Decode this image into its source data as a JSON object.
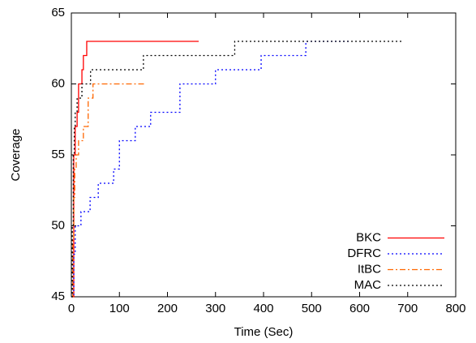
{
  "chart_data": {
    "type": "line",
    "step": true,
    "xlabel": "Time (Sec)",
    "ylabel": "Coverage",
    "xlim": [
      0,
      800
    ],
    "ylim": [
      45,
      65
    ],
    "xticks": [
      0,
      100,
      200,
      300,
      400,
      500,
      600,
      700,
      800
    ],
    "yticks": [
      45,
      50,
      55,
      60,
      65
    ],
    "grid": false,
    "legend": "lower right",
    "series": [
      {
        "name": "BKC",
        "color": "#ff0000",
        "dash": "solid",
        "x": [
          2,
          5,
          8,
          12,
          15,
          22,
          25,
          32,
          265
        ],
        "values": [
          45,
          55,
          57,
          58,
          60,
          61,
          62,
          63,
          63
        ]
      },
      {
        "name": "DFRC",
        "color": "#0000ff",
        "dash": "dotted",
        "x": [
          0,
          5,
          8,
          20,
          39,
          56,
          88,
          100,
          133,
          165,
          226,
          300,
          395,
          488,
          577
        ],
        "values": [
          45,
          48,
          50,
          51,
          52,
          53,
          54,
          56,
          57,
          58,
          60,
          61,
          62,
          63,
          63
        ]
      },
      {
        "name": "ItBC",
        "color": "#ff6600",
        "dash": "dashdot",
        "x": [
          0,
          3,
          5,
          7,
          10,
          15,
          25,
          35,
          45,
          155
        ],
        "values": [
          45,
          49,
          52,
          54,
          55,
          56,
          57,
          59,
          60,
          60
        ]
      },
      {
        "name": "MAC",
        "color": "#000000",
        "dash": "dotted",
        "x": [
          0,
          2,
          4,
          6,
          8,
          12,
          22,
          40,
          150,
          340,
          690
        ],
        "values": [
          45,
          50,
          55,
          57,
          58,
          59,
          60,
          61,
          62,
          63,
          63
        ]
      }
    ]
  }
}
